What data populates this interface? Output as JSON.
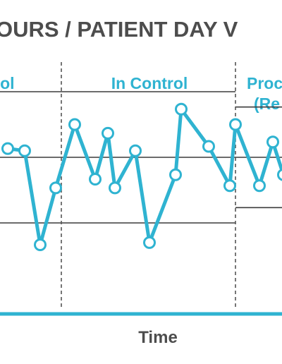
{
  "chart_data": {
    "type": "line",
    "title": "OURS / PATIENT DAY V",
    "xlabel": "Time",
    "ylabel": "",
    "phases": [
      {
        "label_lines": [
          "trol"
        ]
      },
      {
        "label_lines": [
          "In Control"
        ]
      },
      {
        "label_lines": [
          "Proc",
          "(Re"
        ]
      }
    ],
    "control_limits": [
      {
        "ucl": 80,
        "center": 50,
        "lcl": 20
      },
      {
        "ucl": 80,
        "center": 50,
        "lcl": 20
      },
      {
        "ucl": 73,
        "center": 50,
        "lcl": 27
      }
    ],
    "series": [
      {
        "values": [
          54,
          53,
          10,
          36,
          65,
          40,
          61,
          36,
          53,
          11,
          42,
          72,
          55,
          37,
          65,
          37,
          57,
          42
        ]
      }
    ],
    "colors": {
      "series": "#2fb3d1",
      "limit_lines": "#3c3c3c",
      "axis": "#2fb3d1",
      "dividers": "#555555",
      "title": "#4d4d4d"
    }
  }
}
